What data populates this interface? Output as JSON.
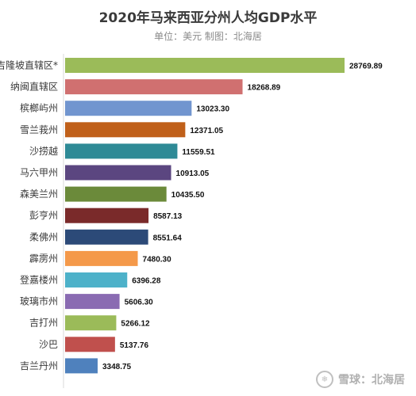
{
  "chart_data": {
    "type": "bar",
    "orientation": "horizontal",
    "title": "2020年马来西亚分州人均GDP水平",
    "subtitle": "单位：美元  制图：北海居",
    "categories": [
      "吉隆坡直辖区*",
      "纳闽直辖区",
      "槟榔屿州",
      "雪兰莪州",
      "沙捞越",
      "马六甲州",
      "森美兰州",
      "彭亨州",
      "柔佛州",
      "霹雳州",
      "登嘉楼州",
      "玻璃市州",
      "吉打州",
      "沙巴",
      "吉兰丹州"
    ],
    "values": [
      28769.89,
      18268.89,
      13023.3,
      12371.05,
      11559.51,
      10913.05,
      10435.5,
      8587.13,
      8551.64,
      7480.3,
      6396.28,
      5606.3,
      5266.12,
      5137.76,
      3348.75
    ],
    "value_labels": [
      "28769.89",
      "18268.89",
      "13023.30",
      "12371.05",
      "11559.51",
      "10913.05",
      "10435.50",
      "8587.13",
      "8551.64",
      "7480.30",
      "6396.28",
      "5606.30",
      "5266.12",
      "5137.76",
      "3348.75"
    ],
    "colors": [
      "#9bbb59",
      "#d07070",
      "#7195cf",
      "#c0601a",
      "#2e8a96",
      "#5b4680",
      "#6b8a3a",
      "#7a2a2a",
      "#2c4a78",
      "#f4994a",
      "#4db1c9",
      "#8a6bb2",
      "#9bbb59",
      "#c0504d",
      "#4f81bd"
    ],
    "xlim": [
      0,
      30000
    ],
    "grid": false,
    "legend": "none"
  },
  "watermark": {
    "logo_icon": "snowball-logo-icon",
    "text": "雪球：北海居"
  }
}
